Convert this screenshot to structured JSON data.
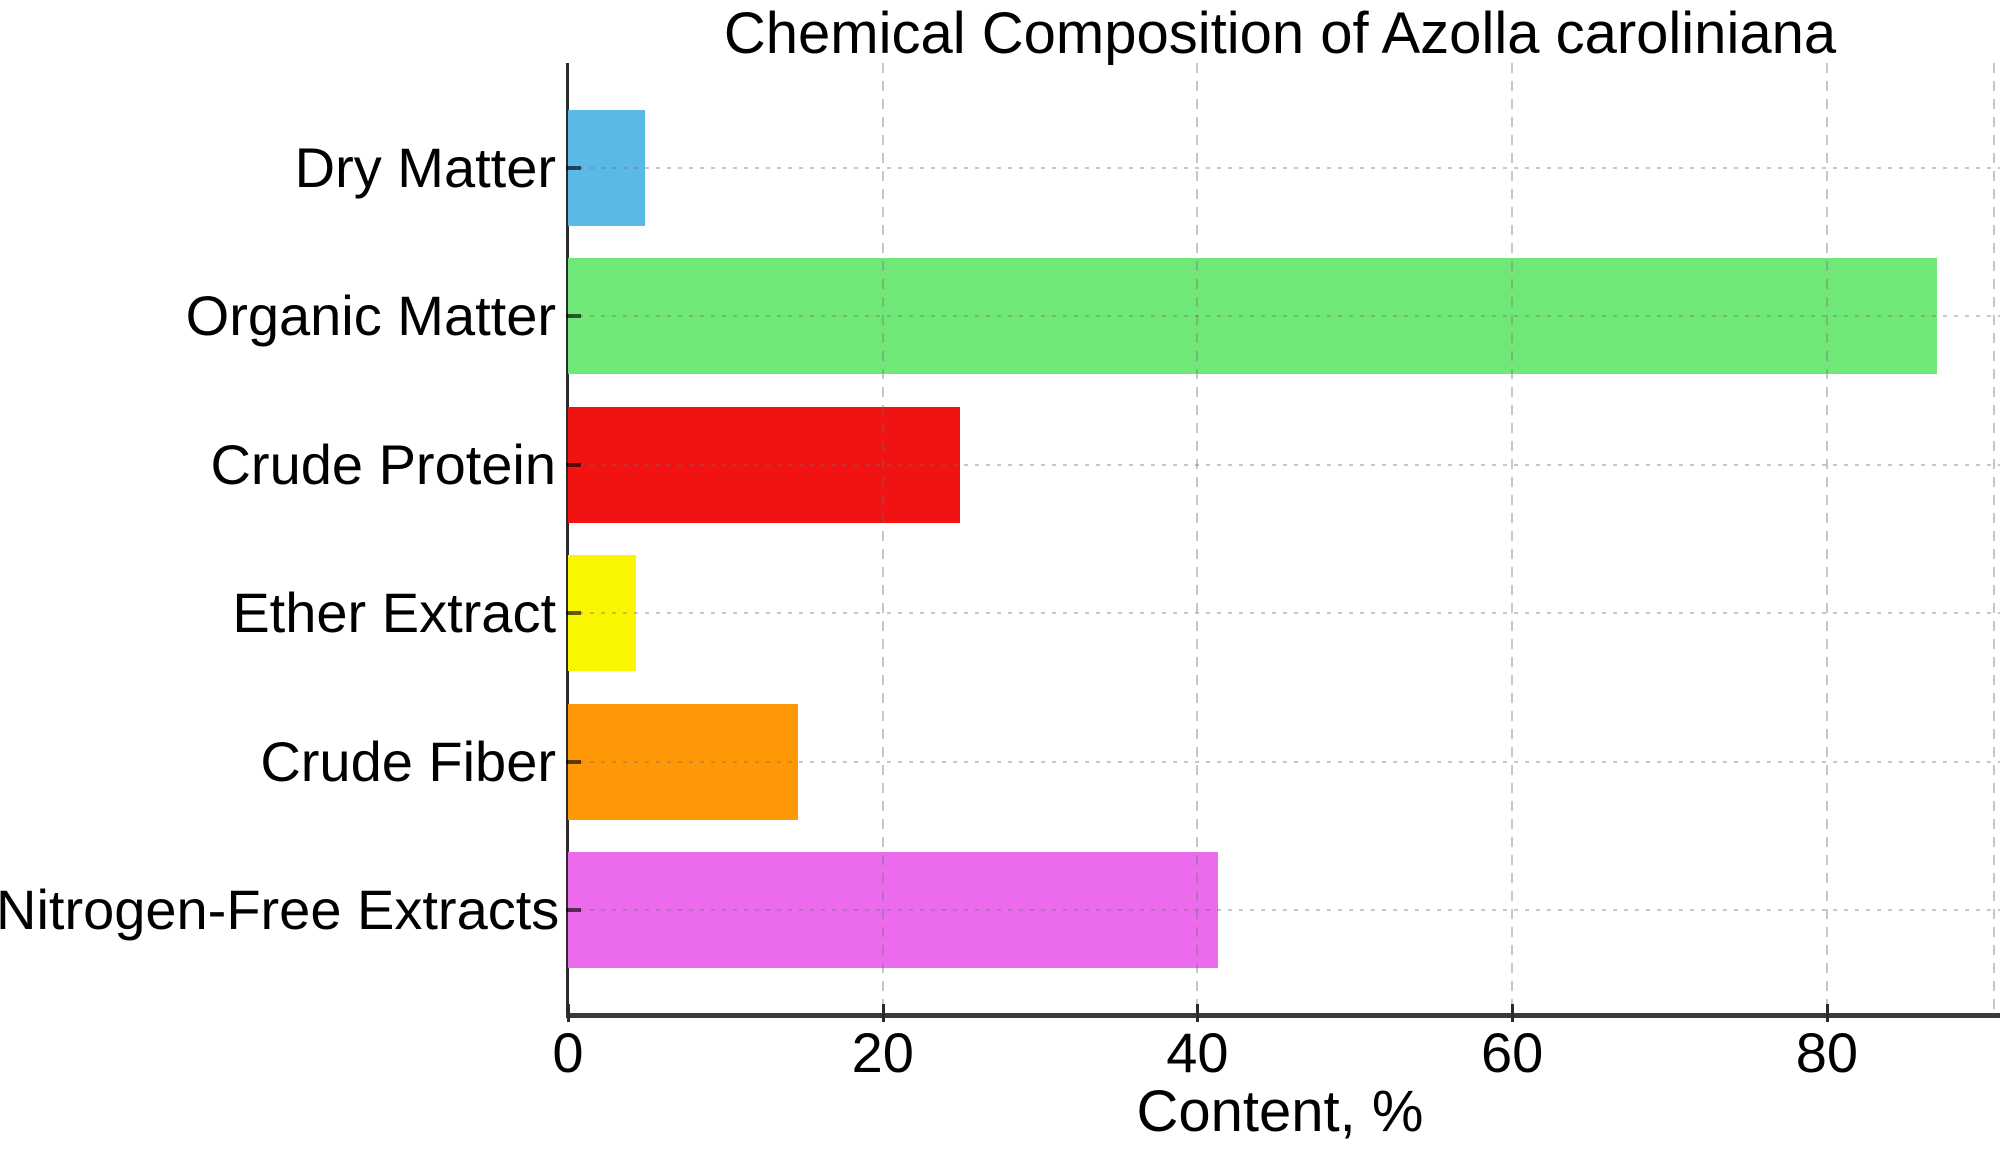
{
  "chart_data": {
    "type": "bar",
    "orientation": "horizontal",
    "title": "Chemical Composition of Azolla caroliniana",
    "xlabel": "Content, %",
    "ylabel": "",
    "categories": [
      "Dry Matter",
      "Organic Matter",
      "Crude Protein",
      "Ether Extract",
      "Crude Fiber",
      "Nitrogen-Free Extracts"
    ],
    "values": [
      4.9,
      87.0,
      24.9,
      4.3,
      14.6,
      41.3
    ],
    "bar_colors": [
      "#5BB9E8",
      "#70E878",
      "#F11212",
      "#FAF500",
      "#FF9806",
      "#EC6AEC"
    ],
    "xticks": [
      0,
      20,
      40,
      60,
      80
    ],
    "xlim": [
      0,
      91
    ],
    "grid": true,
    "legend": false,
    "background": "#ffffff",
    "axis_color": "#3a3a3a",
    "grid_color": "#c9c9c9",
    "text_color": "#000000"
  }
}
